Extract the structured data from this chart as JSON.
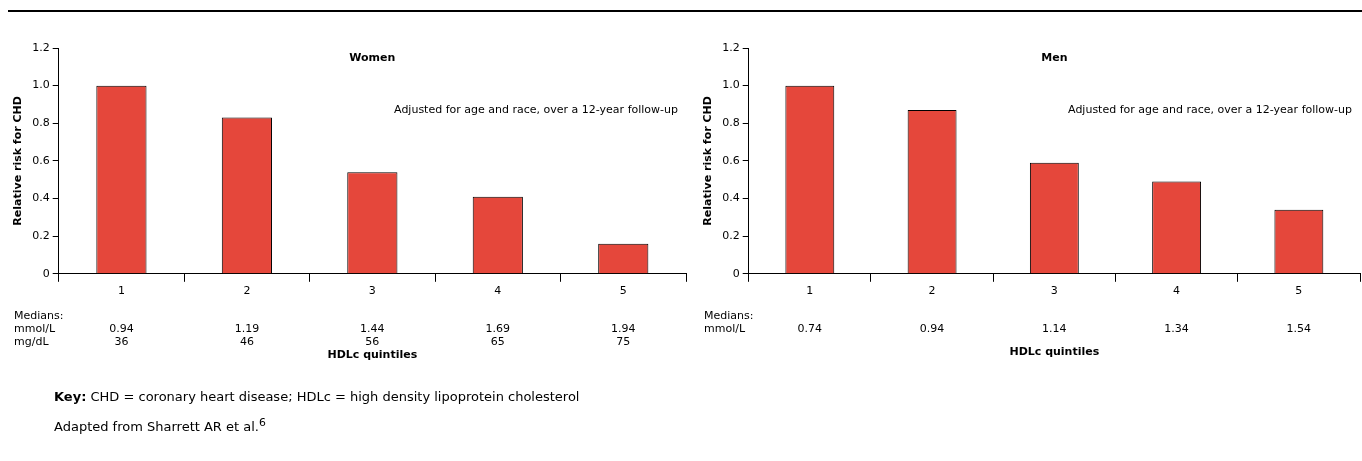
{
  "chart_data": [
    {
      "type": "bar",
      "title": "Women",
      "xlabel": "HDLc quintiles",
      "ylabel": "Relative risk for CHD",
      "categories": [
        "1",
        "2",
        "3",
        "4",
        "5"
      ],
      "values": [
        1.0,
        0.83,
        0.54,
        0.41,
        0.16
      ],
      "color": "#e5473b",
      "ylim": [
        0,
        1.2
      ],
      "yticks": [
        0,
        0.2,
        0.4,
        0.6,
        0.8,
        {
          "value": 1,
          "label": "1.0"
        },
        1.2
      ],
      "grid": false,
      "annotations": [
        "Adjusted for age and race, over a 12-year follow-up",
        "Medians:",
        "mmol/L",
        "0.94",
        "1.19",
        "1.44",
        "1.69",
        "1.94",
        "mg/dL",
        "36",
        "46",
        "56",
        "65",
        "75"
      ]
    },
    {
      "type": "bar",
      "title": "Men",
      "xlabel": "HDLc quintiles",
      "ylabel": "Relative risk for CHD",
      "categories": [
        "1",
        "2",
        "3",
        "4",
        "5"
      ],
      "values": [
        1.0,
        0.87,
        0.59,
        0.49,
        0.34
      ],
      "color": "#e5473b",
      "ylim": [
        0,
        1.2
      ],
      "yticks": [
        0,
        0.2,
        0.4,
        0.6,
        0.8,
        {
          "value": 1,
          "label": "1.0"
        },
        1.2
      ],
      "grid": false,
      "annotations": [
        "Adjusted for age and race, over a 12-year follow-up",
        "Medians:",
        "mmol/L",
        "0.74",
        "0.94",
        "1.14",
        "1.34",
        "1.54"
      ]
    },
    {
      "type": "other",
      "annotations": [
        "Key: CHD = coronary heart disease; HDLc = high density lipoprotein cholesterol",
        "Adapted from Sharrett AR et al.$^{6}$"
      ]
    }
  ]
}
